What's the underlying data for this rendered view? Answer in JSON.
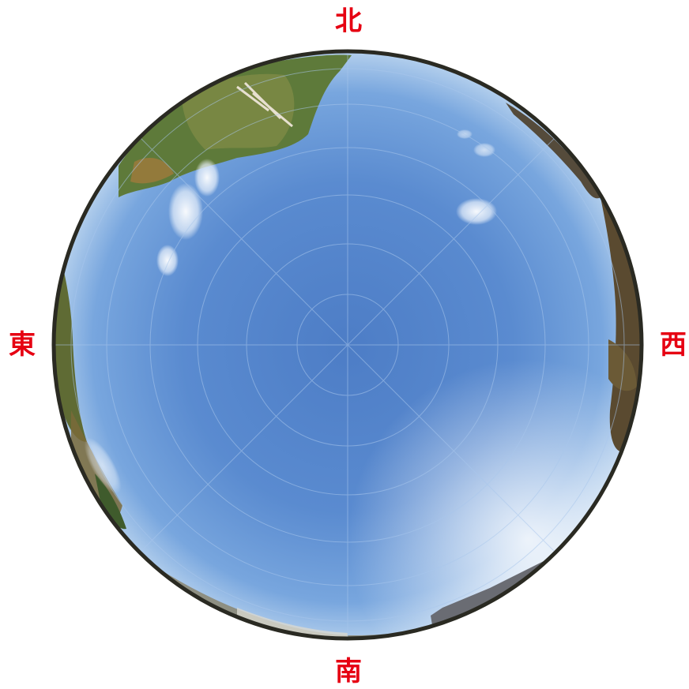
{
  "compass": {
    "north": "北",
    "south": "南",
    "east": "東",
    "west": "西"
  },
  "colors": {
    "label": "#e60012",
    "sky_center": "#4f7fc7",
    "sky_edge": "#86b3e6",
    "rim": "#2a2a22",
    "grid": "#9fc2ea"
  },
  "image": {
    "subject": "fisheye-sky-view",
    "grid_rings": 6,
    "grid_spokes": 8
  }
}
